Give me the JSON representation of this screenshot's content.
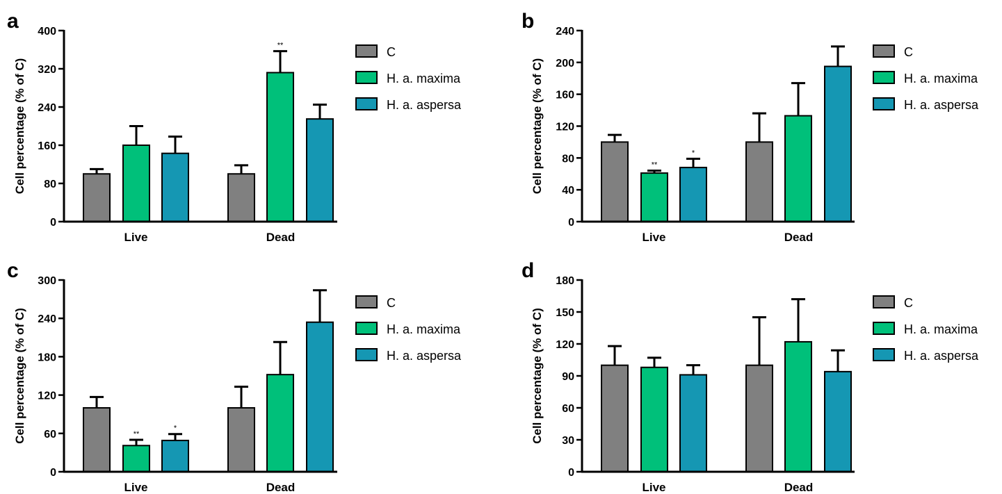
{
  "colors": {
    "C": "#808080",
    "H. a. maxima": "#00c07a",
    "H. a. aspersa": "#1597b3"
  },
  "chart_data": [
    {
      "panel": "a",
      "type": "bar",
      "categories": [
        "Live",
        "Dead"
      ],
      "ylabel": "Cell percentage (% of C)",
      "ylim": [
        0,
        400
      ],
      "yticks": [
        0,
        80,
        160,
        240,
        320,
        400
      ],
      "legend": "right",
      "series": [
        {
          "name": "C",
          "values": [
            100,
            100
          ],
          "errors": [
            10,
            18
          ],
          "sig": [
            "",
            ""
          ]
        },
        {
          "name": "H. a. maxima",
          "values": [
            160,
            312
          ],
          "errors": [
            40,
            45
          ],
          "sig": [
            "",
            "**"
          ]
        },
        {
          "name": "H. a. aspersa",
          "values": [
            143,
            215
          ],
          "errors": [
            35,
            30
          ],
          "sig": [
            "",
            ""
          ]
        }
      ]
    },
    {
      "panel": "b",
      "type": "bar",
      "categories": [
        "Live",
        "Dead"
      ],
      "ylabel": "Cell percentage (% of C)",
      "ylim": [
        0,
        240
      ],
      "yticks": [
        0,
        40,
        80,
        120,
        160,
        200,
        240
      ],
      "legend": "right",
      "series": [
        {
          "name": "C",
          "values": [
            100,
            100
          ],
          "errors": [
            9,
            36
          ],
          "sig": [
            "",
            ""
          ]
        },
        {
          "name": "H. a. maxima",
          "values": [
            61,
            133
          ],
          "errors": [
            3,
            41
          ],
          "sig": [
            "**",
            ""
          ]
        },
        {
          "name": "H. a. aspersa",
          "values": [
            68,
            195
          ],
          "errors": [
            11,
            25
          ],
          "sig": [
            "*",
            ""
          ]
        }
      ]
    },
    {
      "panel": "c",
      "type": "bar",
      "categories": [
        "Live",
        "Dead"
      ],
      "ylabel": "Cell percentage (% of C)",
      "ylim": [
        0,
        300
      ],
      "yticks": [
        0,
        60,
        120,
        180,
        240,
        300
      ],
      "legend": "right",
      "series": [
        {
          "name": "C",
          "values": [
            100,
            100
          ],
          "errors": [
            17,
            33
          ],
          "sig": [
            "",
            ""
          ]
        },
        {
          "name": "H. a. maxima",
          "values": [
            41,
            152
          ],
          "errors": [
            9,
            51
          ],
          "sig": [
            "**",
            ""
          ]
        },
        {
          "name": "H. a. aspersa",
          "values": [
            49,
            234
          ],
          "errors": [
            10,
            50
          ],
          "sig": [
            "*",
            ""
          ]
        }
      ]
    },
    {
      "panel": "d",
      "type": "bar",
      "categories": [
        "Live",
        "Dead"
      ],
      "ylabel": "Cell percentage (% of C)",
      "ylim": [
        0,
        180
      ],
      "yticks": [
        0,
        30,
        60,
        90,
        120,
        150,
        180
      ],
      "legend": "right",
      "series": [
        {
          "name": "C",
          "values": [
            100,
            100
          ],
          "errors": [
            18,
            45
          ],
          "sig": [
            "",
            ""
          ]
        },
        {
          "name": "H. a. maxima",
          "values": [
            98,
            122
          ],
          "errors": [
            9,
            40
          ],
          "sig": [
            "",
            ""
          ]
        },
        {
          "name": "H. a. aspersa",
          "values": [
            91,
            94
          ],
          "errors": [
            9,
            20
          ],
          "sig": [
            "",
            ""
          ]
        }
      ]
    }
  ]
}
